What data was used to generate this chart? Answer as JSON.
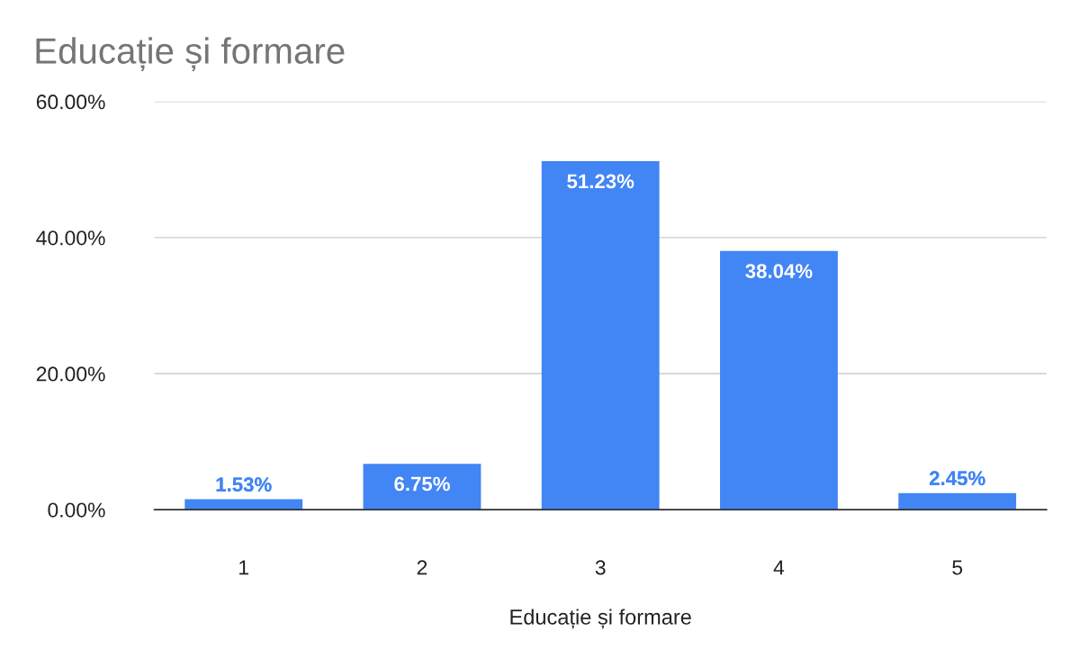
{
  "chart_data": {
    "type": "bar",
    "title": "Educație și formare",
    "xlabel": "Educație și formare",
    "categories": [
      "1",
      "2",
      "3",
      "4",
      "5"
    ],
    "values": [
      1.53,
      6.75,
      51.23,
      38.04,
      2.45
    ],
    "color": "#4285f4",
    "value_labels": [
      "1.53%",
      "6.75%",
      "51.23%",
      "38.04%",
      "2.45%"
    ],
    "ylim": [
      0,
      60
    ],
    "yticks": [
      {
        "value": 0,
        "label": "0.00%"
      },
      {
        "value": 20,
        "label": "20.00%"
      },
      {
        "value": 40,
        "label": "40.00%"
      },
      {
        "value": 60,
        "label": "60.00%"
      }
    ],
    "grid": "y"
  }
}
